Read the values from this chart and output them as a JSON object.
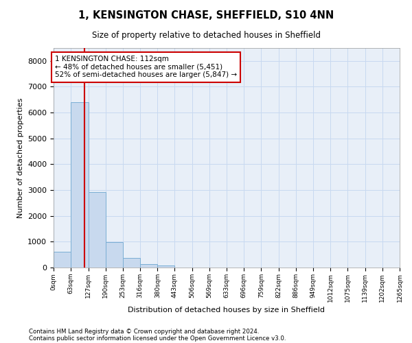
{
  "title": "1, KENSINGTON CHASE, SHEFFIELD, S10 4NN",
  "subtitle": "Size of property relative to detached houses in Sheffield",
  "xlabel": "Distribution of detached houses by size in Sheffield",
  "ylabel": "Number of detached properties",
  "bar_color": "#c8d9ee",
  "bar_edge_color": "#7aaed4",
  "grid_color": "#c8d9f0",
  "background_color": "#e8eff8",
  "property_size": 112,
  "property_line_color": "#cc0000",
  "annotation_text": "1 KENSINGTON CHASE: 112sqm\n← 48% of detached houses are smaller (5,451)\n52% of semi-detached houses are larger (5,847) →",
  "annotation_box_color": "#ffffff",
  "annotation_box_edge": "#cc0000",
  "bin_edges": [
    0,
    63,
    127,
    190,
    253,
    316,
    380,
    443,
    506,
    569,
    633,
    696,
    759,
    822,
    886,
    949,
    1012,
    1075,
    1139,
    1202,
    1265
  ],
  "bar_heights": [
    620,
    6400,
    2920,
    970,
    360,
    140,
    75,
    0,
    0,
    0,
    0,
    0,
    0,
    0,
    0,
    0,
    0,
    0,
    0,
    0
  ],
  "ylim": [
    0,
    8500
  ],
  "yticks": [
    0,
    1000,
    2000,
    3000,
    4000,
    5000,
    6000,
    7000,
    8000
  ],
  "footer_line1": "Contains HM Land Registry data © Crown copyright and database right 2024.",
  "footer_line2": "Contains public sector information licensed under the Open Government Licence v3.0."
}
